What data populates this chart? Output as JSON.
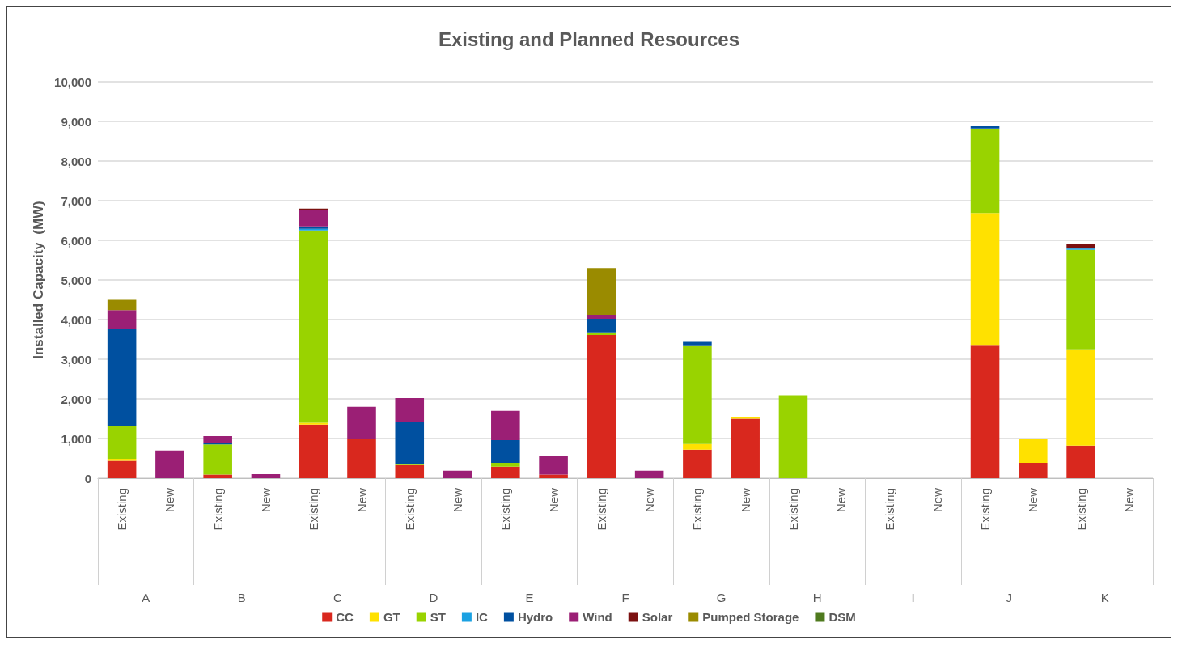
{
  "chart_data": {
    "type": "bar",
    "title": "Existing and Planned Resources",
    "ylabel": "Installed Capacity  (MW)",
    "stacked": true,
    "grid": "y",
    "legend": "bottom",
    "categories": [
      "Existing",
      "New",
      "Existing",
      "New",
      "Existing",
      "New",
      "Existing",
      "New",
      "Existing",
      "New",
      "Existing",
      "New",
      "Existing",
      "New",
      "Existing",
      "New",
      "Existing",
      "New",
      "Existing",
      "New",
      "Existing",
      "New"
    ],
    "annotations": [
      "A",
      "B",
      "C",
      "D",
      "E",
      "F",
      "G",
      "H",
      "I",
      "J",
      "K"
    ],
    "ylim": [
      0,
      10000
    ],
    "yticks": [
      0,
      {
        "value": 1000,
        "label": "1,000"
      },
      {
        "value": 2000,
        "label": "2,000"
      },
      {
        "value": 3000,
        "label": "3,000"
      },
      {
        "value": 4000,
        "label": "4,000"
      },
      {
        "value": 5000,
        "label": "5,000"
      },
      {
        "value": 6000,
        "label": "6,000"
      },
      {
        "value": 7000,
        "label": "7,000"
      },
      {
        "value": 8000,
        "label": "8,000"
      },
      {
        "value": 9000,
        "label": "9,000"
      },
      {
        "value": 10000,
        "label": "10,000"
      }
    ],
    "series": [
      {
        "name": "CC",
        "color": "#d9281e",
        "values": [
          440,
          0,
          90,
          0,
          1350,
          1000,
          330,
          0,
          290,
          90,
          3610,
          0,
          720,
          1500,
          0,
          0,
          0,
          0,
          3360,
          390,
          820,
          0
        ]
      },
      {
        "name": "GT",
        "color": "#ffe100",
        "values": [
          50,
          0,
          0,
          0,
          50,
          0,
          0,
          0,
          0,
          0,
          0,
          0,
          140,
          50,
          0,
          0,
          0,
          0,
          3330,
          610,
          2430,
          0
        ]
      },
      {
        "name": "ST",
        "color": "#99d300",
        "values": [
          820,
          0,
          760,
          0,
          4850,
          0,
          30,
          0,
          100,
          0,
          70,
          0,
          2490,
          0,
          2090,
          0,
          0,
          0,
          2110,
          0,
          2510,
          0
        ]
      },
      {
        "name": "IC",
        "color": "#1ba1e2",
        "values": [
          0,
          0,
          0,
          0,
          40,
          0,
          0,
          0,
          0,
          0,
          0,
          0,
          0,
          0,
          0,
          0,
          0,
          0,
          20,
          0,
          30,
          0
        ]
      },
      {
        "name": "Hydro",
        "color": "#0050a0",
        "values": [
          2460,
          0,
          50,
          0,
          60,
          0,
          1060,
          0,
          570,
          0,
          340,
          0,
          90,
          0,
          0,
          0,
          0,
          0,
          60,
          0,
          20,
          0
        ]
      },
      {
        "name": "Wind",
        "color": "#9b1f75",
        "values": [
          470,
          700,
          160,
          100,
          410,
          800,
          600,
          190,
          740,
          460,
          100,
          190,
          0,
          0,
          0,
          0,
          0,
          0,
          0,
          0,
          0,
          0
        ]
      },
      {
        "name": "Solar",
        "color": "#7b1010",
        "values": [
          0,
          0,
          0,
          0,
          40,
          0,
          0,
          0,
          0,
          0,
          0,
          0,
          0,
          0,
          0,
          0,
          0,
          0,
          0,
          0,
          90,
          0
        ]
      },
      {
        "name": "Pumped Storage",
        "color": "#9a8b00",
        "values": [
          260,
          0,
          0,
          0,
          0,
          0,
          0,
          0,
          0,
          0,
          1180,
          0,
          0,
          0,
          0,
          0,
          0,
          0,
          0,
          0,
          0,
          0
        ]
      },
      {
        "name": "DSM",
        "color": "#4f7a1e",
        "values": [
          0,
          0,
          0,
          0,
          0,
          0,
          0,
          0,
          0,
          0,
          0,
          0,
          0,
          0,
          0,
          0,
          0,
          0,
          0,
          0,
          0,
          0
        ]
      }
    ]
  }
}
